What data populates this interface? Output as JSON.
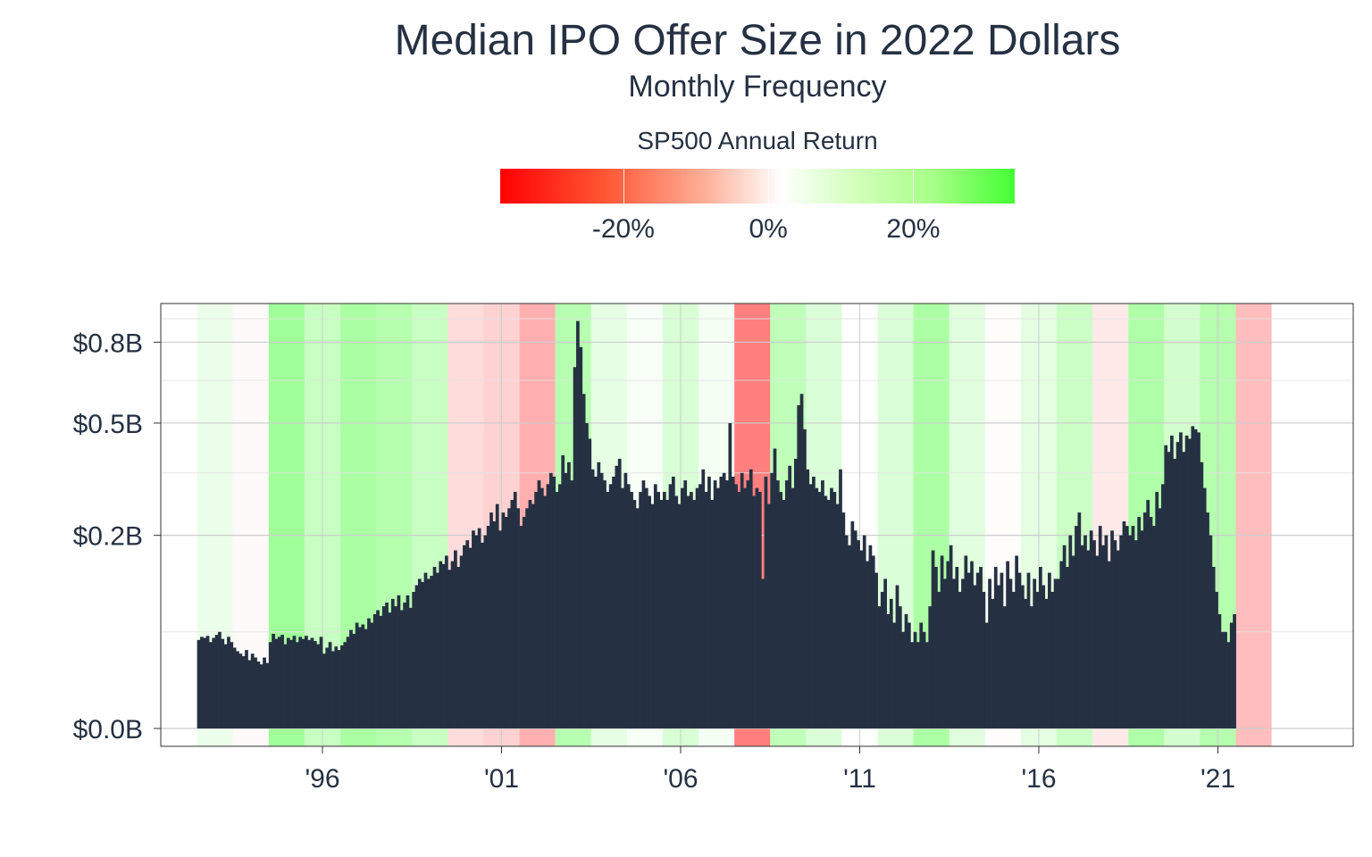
{
  "chart_data": {
    "type": "bar",
    "title": "Median IPO Offer Size in 2022 Dollars",
    "subtitle": "Monthly Frequency",
    "xlabel": "",
    "ylabel": "",
    "y_ticks": [
      {
        "value": 0.0,
        "label": "$0.0B"
      },
      {
        "value": 0.2,
        "label": "$0.2B"
      },
      {
        "value": 0.5,
        "label": "$0.5B"
      },
      {
        "value": 0.8,
        "label": "$0.8B"
      }
    ],
    "x_ticks": [
      {
        "year": 1996,
        "label": "'96"
      },
      {
        "year": 2001,
        "label": "'01"
      },
      {
        "year": 2006,
        "label": "'06"
      },
      {
        "year": 2011,
        "label": "'11"
      },
      {
        "year": 2016,
        "label": "'16"
      },
      {
        "year": 2021,
        "label": "'21"
      }
    ],
    "legend": {
      "title": "SP500 Annual Return",
      "placement": "top",
      "range": [
        -0.37,
        0.34
      ],
      "ticks": [
        {
          "value": -0.2,
          "label": "-20%"
        },
        {
          "value": 0.0,
          "label": "0%"
        },
        {
          "value": 0.2,
          "label": "20%"
        }
      ],
      "color_low": "#ff0000",
      "color_mid": "#ffffff",
      "color_high": "#44ff33"
    },
    "background_years": [
      {
        "year": 1993,
        "return": 0.07
      },
      {
        "year": 1994,
        "return": -0.015
      },
      {
        "year": 1995,
        "return": 0.34
      },
      {
        "year": 1996,
        "return": 0.2
      },
      {
        "year": 1997,
        "return": 0.31
      },
      {
        "year": 1998,
        "return": 0.27
      },
      {
        "year": 1999,
        "return": 0.2
      },
      {
        "year": 2000,
        "return": -0.1
      },
      {
        "year": 2001,
        "return": -0.13
      },
      {
        "year": 2002,
        "return": -0.23
      },
      {
        "year": 2003,
        "return": 0.26
      },
      {
        "year": 2004,
        "return": 0.09
      },
      {
        "year": 2005,
        "return": 0.03
      },
      {
        "year": 2006,
        "return": 0.14
      },
      {
        "year": 2007,
        "return": 0.035
      },
      {
        "year": 2008,
        "return": -0.38
      },
      {
        "year": 2009,
        "return": 0.23
      },
      {
        "year": 2010,
        "return": 0.13
      },
      {
        "year": 2011,
        "return": 0.0
      },
      {
        "year": 2012,
        "return": 0.13
      },
      {
        "year": 2013,
        "return": 0.3
      },
      {
        "year": 2014,
        "return": 0.11
      },
      {
        "year": 2015,
        "return": -0.007
      },
      {
        "year": 2016,
        "return": 0.095
      },
      {
        "year": 2017,
        "return": 0.19
      },
      {
        "year": 2018,
        "return": -0.06
      },
      {
        "year": 2019,
        "return": 0.29
      },
      {
        "year": 2020,
        "return": 0.16
      },
      {
        "year": 2021,
        "return": 0.27
      },
      {
        "year": 2022,
        "return": -0.19
      }
    ],
    "bar_color": "#253142",
    "y_scale": "sqrt",
    "ylim": [
      0.0,
      0.92
    ],
    "series": [
      {
        "start": "1993-01",
        "values": [
          0.042,
          0.045,
          0.044,
          0.046,
          0.04,
          0.044,
          0.047,
          0.05,
          0.043,
          0.038,
          0.045,
          0.04,
          0.035,
          0.032,
          0.03,
          0.028,
          0.033,
          0.025,
          0.03,
          0.027,
          0.024,
          0.022,
          0.027,
          0.023,
          0.04,
          0.048,
          0.043,
          0.045,
          0.047,
          0.038,
          0.044,
          0.042,
          0.046,
          0.04,
          0.045,
          0.043,
          0.046,
          0.042,
          0.044,
          0.041,
          0.038,
          0.045,
          0.03,
          0.035,
          0.04,
          0.032,
          0.036,
          0.033,
          0.037,
          0.04,
          0.045,
          0.052,
          0.048,
          0.06,
          0.055,
          0.058,
          0.053,
          0.065,
          0.06,
          0.07,
          0.075,
          0.068,
          0.08,
          0.085,
          0.072,
          0.09,
          0.08,
          0.095,
          0.075,
          0.085,
          0.095,
          0.078,
          0.1,
          0.11,
          0.12,
          0.115,
          0.13,
          0.12,
          0.125,
          0.14,
          0.13,
          0.15,
          0.145,
          0.16,
          0.135,
          0.15,
          0.17,
          0.14,
          0.16,
          0.18,
          0.19,
          0.175,
          0.21,
          0.2,
          0.215,
          0.185,
          0.2,
          0.22,
          0.25,
          0.23,
          0.27,
          0.21,
          0.25,
          0.24,
          0.26,
          0.28,
          0.3,
          0.26,
          0.22,
          0.24,
          0.26,
          0.28,
          0.27,
          0.3,
          0.33,
          0.31,
          0.29,
          0.32,
          0.35,
          0.34,
          0.3,
          0.32,
          0.4,
          0.35,
          0.38,
          0.33,
          0.7,
          0.89,
          0.78,
          0.6,
          0.5,
          0.45,
          0.36,
          0.34,
          0.38,
          0.35,
          0.33,
          0.3,
          0.32,
          0.34,
          0.37,
          0.39,
          0.31,
          0.35,
          0.32,
          0.3,
          0.28,
          0.26,
          0.3,
          0.33,
          0.31,
          0.29,
          0.27,
          0.32,
          0.3,
          0.28,
          0.3,
          0.28,
          0.32,
          0.34,
          0.29,
          0.27,
          0.31,
          0.33,
          0.29,
          0.3,
          0.28,
          0.31,
          0.32,
          0.36,
          0.3,
          0.34,
          0.28,
          0.33,
          0.31,
          0.34,
          0.35,
          0.33,
          0.5,
          0.34,
          0.32,
          0.3,
          0.35,
          0.31,
          0.33,
          0.36,
          0.29,
          0.31,
          0.3,
          0.12,
          0.34,
          0.27,
          0.35,
          0.42,
          0.33,
          0.3,
          0.28,
          0.33,
          0.37,
          0.31,
          0.39,
          0.56,
          0.6,
          0.48,
          0.36,
          0.32,
          0.34,
          0.31,
          0.3,
          0.33,
          0.29,
          0.28,
          0.31,
          0.3,
          0.27,
          0.36,
          0.25,
          0.2,
          0.18,
          0.23,
          0.21,
          0.19,
          0.17,
          0.2,
          0.15,
          0.18,
          0.16,
          0.13,
          0.08,
          0.1,
          0.12,
          0.07,
          0.09,
          0.06,
          0.11,
          0.08,
          0.05,
          0.07,
          0.06,
          0.04,
          0.05,
          0.04,
          0.06,
          0.05,
          0.04,
          0.08,
          0.17,
          0.14,
          0.1,
          0.16,
          0.12,
          0.15,
          0.18,
          0.12,
          0.14,
          0.1,
          0.12,
          0.16,
          0.13,
          0.15,
          0.11,
          0.13,
          0.14,
          0.1,
          0.06,
          0.12,
          0.09,
          0.14,
          0.11,
          0.13,
          0.08,
          0.15,
          0.12,
          0.1,
          0.16,
          0.13,
          0.11,
          0.09,
          0.13,
          0.08,
          0.12,
          0.1,
          0.14,
          0.11,
          0.09,
          0.13,
          0.1,
          0.12,
          0.12,
          0.15,
          0.18,
          0.14,
          0.2,
          0.16,
          0.22,
          0.25,
          0.18,
          0.2,
          0.17,
          0.21,
          0.19,
          0.16,
          0.22,
          0.18,
          0.2,
          0.15,
          0.21,
          0.19,
          0.17,
          0.2,
          0.23,
          0.22,
          0.2,
          0.22,
          0.19,
          0.24,
          0.21,
          0.25,
          0.28,
          0.24,
          0.22,
          0.3,
          0.26,
          0.32,
          0.43,
          0.41,
          0.46,
          0.39,
          0.44,
          0.47,
          0.41,
          0.46,
          0.45,
          0.49,
          0.48,
          0.47,
          0.38,
          0.31,
          0.25,
          0.2,
          0.14,
          0.1,
          0.07,
          0.05,
          0.05,
          0.04,
          0.06,
          0.07
        ]
      }
    ]
  }
}
